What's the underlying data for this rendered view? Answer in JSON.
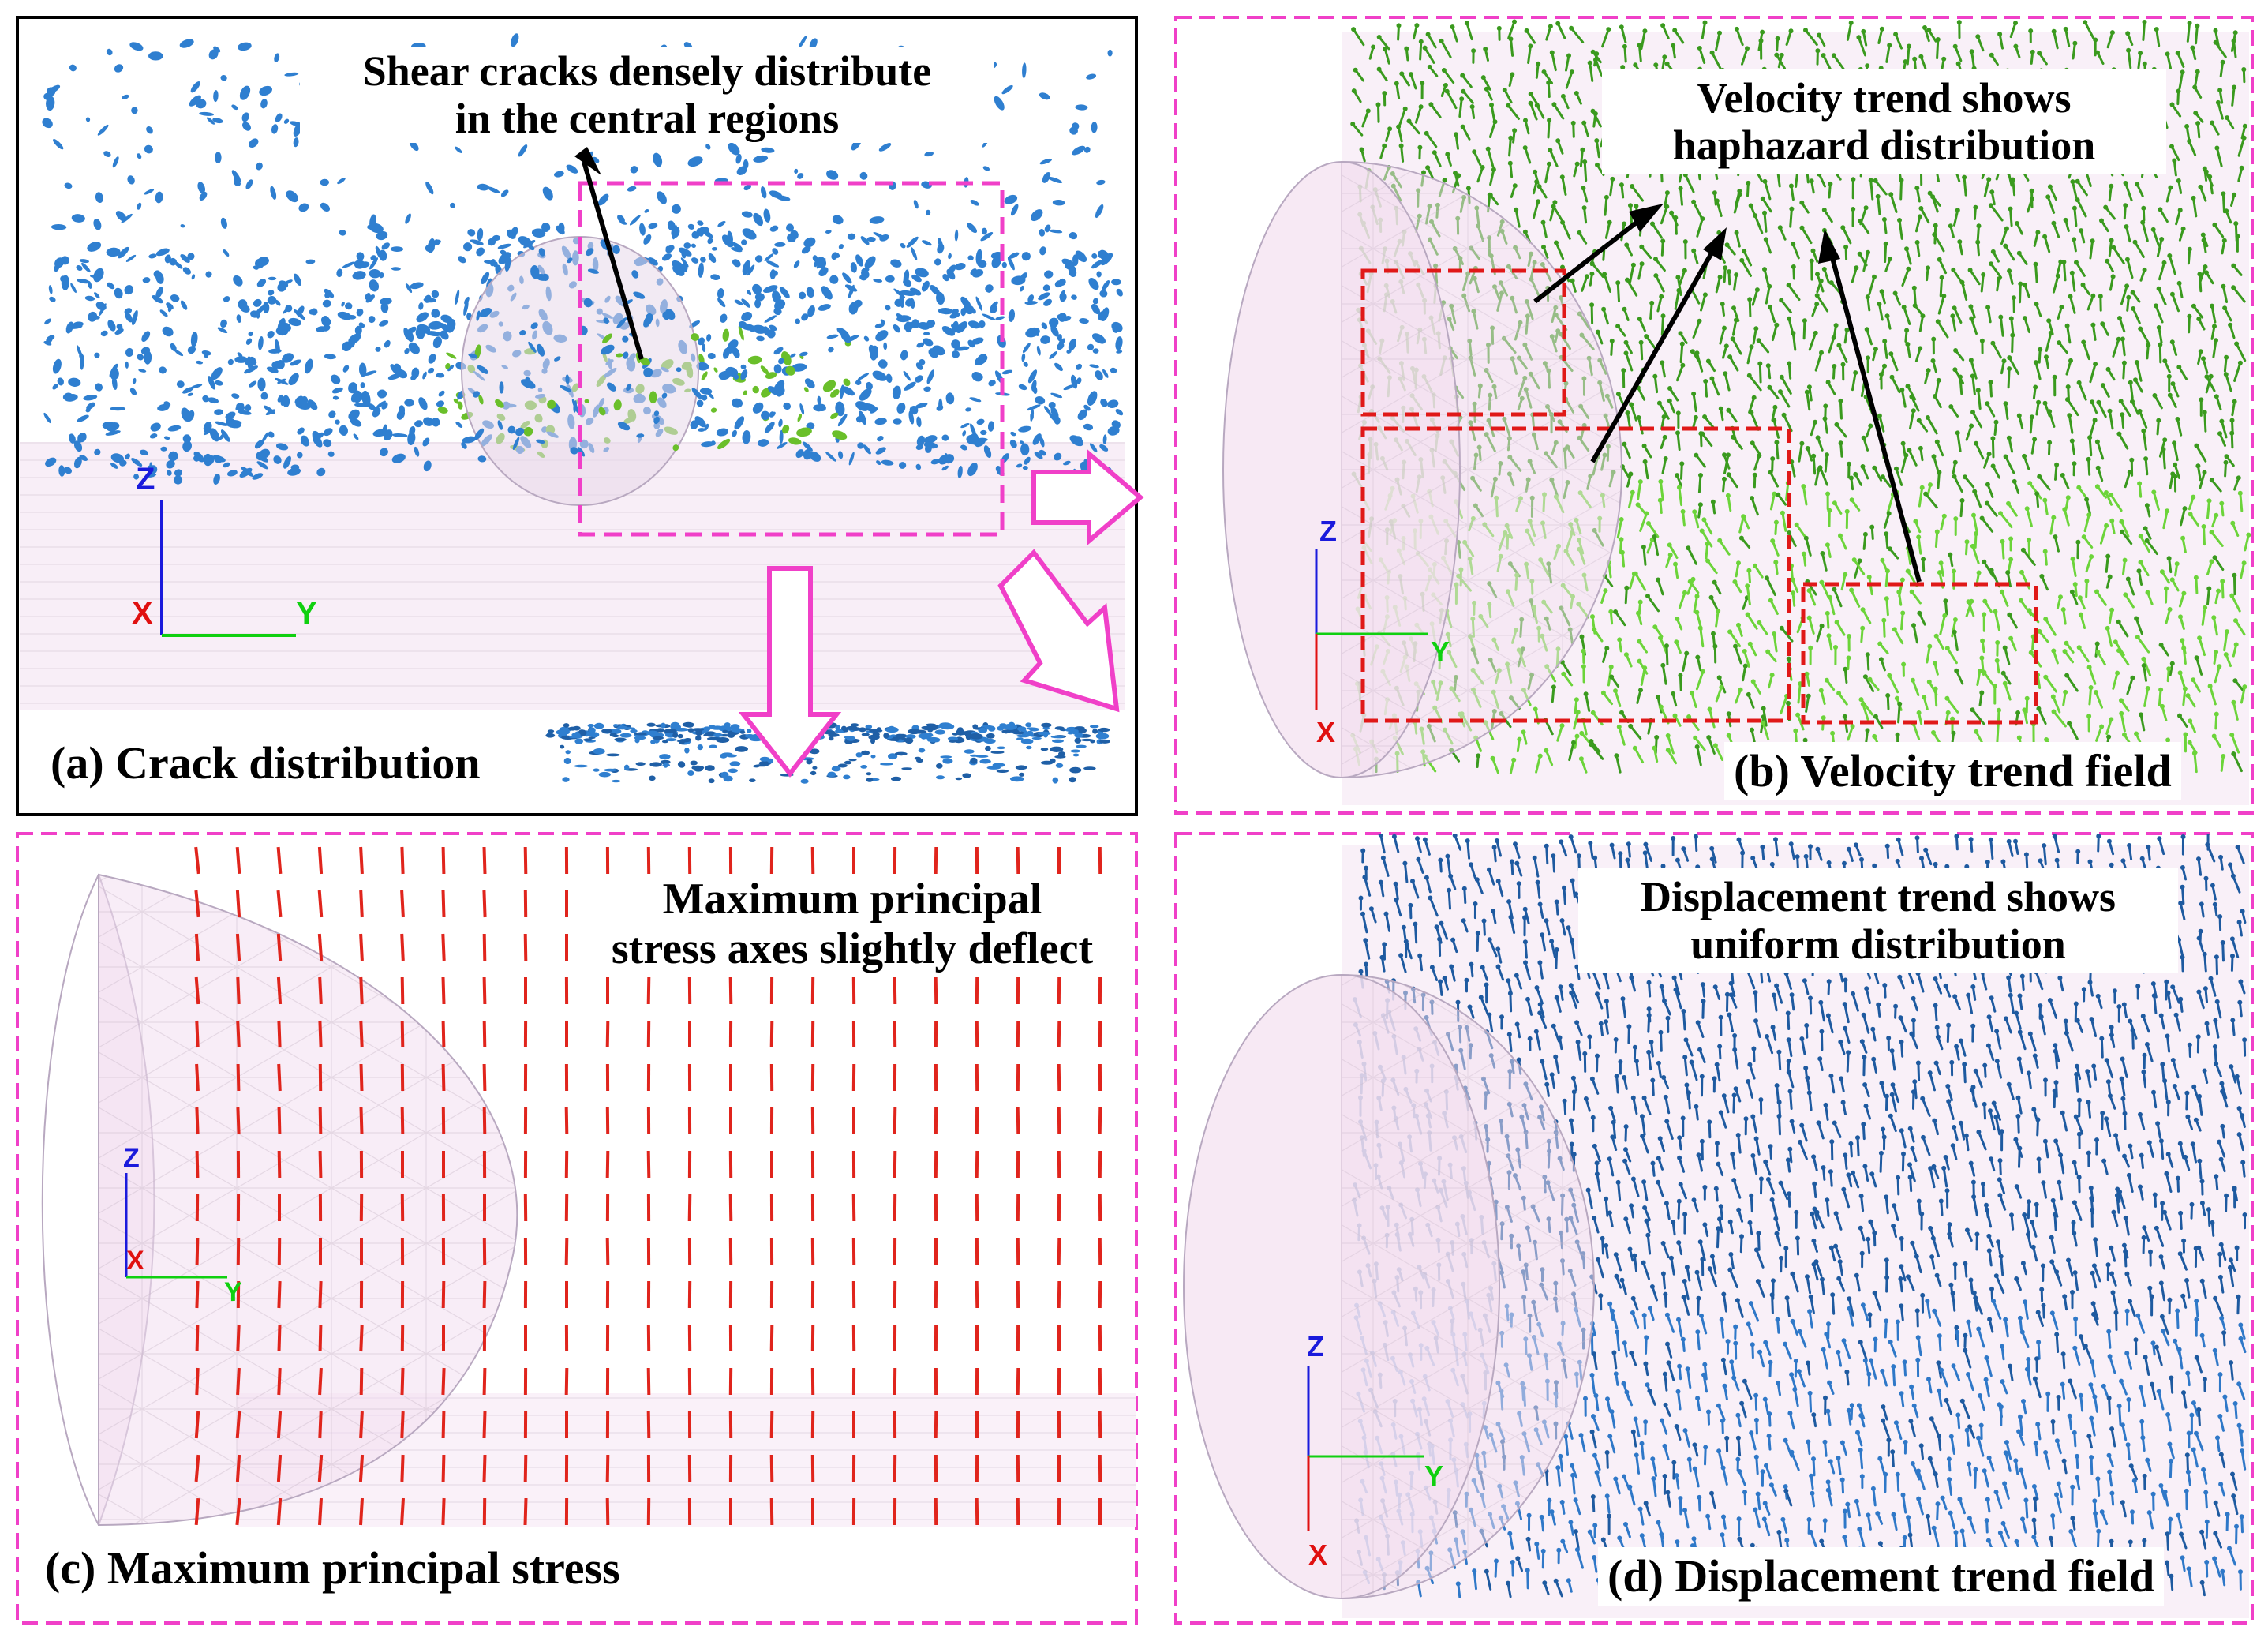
{
  "panels": {
    "a": {
      "caption": "(a) Crack distribution",
      "annotation_line1": "Shear cracks densely distribute",
      "annotation_line2": "in the central regions"
    },
    "b": {
      "caption": "(b) Velocity trend field",
      "annotation_line1": "Velocity trend shows",
      "annotation_line2": "haphazard distribution"
    },
    "c": {
      "caption": "(c) Maximum principal stress",
      "annotation_line1": "Maximum principal",
      "annotation_line2": "stress axes slightly deflect"
    },
    "d": {
      "caption": "(d) Displacement trend field",
      "annotation_line1": "Displacement trend shows",
      "annotation_line2": "uniform distribution"
    }
  },
  "axes": {
    "z": "Z",
    "x": "X",
    "y": "Y"
  },
  "colors": {
    "crack_blue": "#2f7fd0",
    "crack_green": "#6abf2a",
    "velocity_green": "#3a9a1e",
    "displacement_blue": "#1e5aa0",
    "stress_red": "#e0241c",
    "highlight_magenta": "#f040c8",
    "highlight_red": "#e01818",
    "sphere_fill": "#f3dff0",
    "axis_z": "#1a1adc",
    "axis_x": "#e01010",
    "axis_y": "#10d010"
  }
}
